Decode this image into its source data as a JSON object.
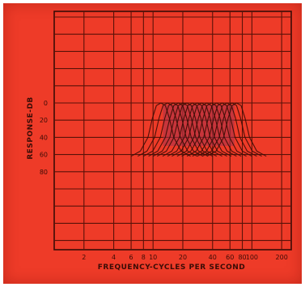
{
  "chart_data": {
    "type": "line",
    "title": "",
    "xlabel": "FREQUENCY-CYCLES PER SECOND",
    "ylabel": "RESPONSE-DB",
    "x_scale": "log",
    "xlim": [
      1,
      250
    ],
    "ylim": [
      0,
      100
    ],
    "y_inverted": true,
    "x_tick_labels": [
      2,
      4,
      6,
      8,
      10,
      20,
      40,
      60,
      80,
      100,
      200
    ],
    "y_tick_labels": [
      0,
      20,
      40,
      60,
      80
    ],
    "grid": true,
    "legend": "none",
    "filter_center_frequencies": [
      12,
      14,
      16,
      18,
      20,
      22,
      25,
      28,
      31,
      35,
      39,
      44,
      50,
      56,
      63,
      70
    ],
    "response_shape": {
      "x_ratio_to_center": [
        0.5,
        0.62,
        0.74,
        0.82,
        0.9,
        1.0,
        1.11,
        1.22,
        1.35,
        1.6,
        2.0
      ],
      "response_db": [
        62,
        56,
        40,
        18,
        3,
        0,
        3,
        18,
        40,
        56,
        62
      ]
    },
    "colors": {
      "background": "#ee3b28",
      "ink": "#3a0c06",
      "grid": "#5a1208",
      "overlap": "#a8324a"
    }
  }
}
